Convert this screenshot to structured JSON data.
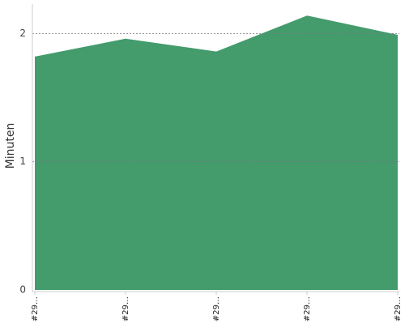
{
  "chart_data": {
    "type": "area",
    "y_label": "Minuten",
    "categories": [
      "#29…",
      "#29…",
      "#29…",
      "#29…",
      "#29…"
    ],
    "values": [
      1.82,
      1.96,
      1.86,
      2.14,
      1.99
    ],
    "color": "#449b6c",
    "ylim": [
      0,
      2.23
    ],
    "yticks": [
      0,
      1,
      2
    ],
    "grid": true
  }
}
